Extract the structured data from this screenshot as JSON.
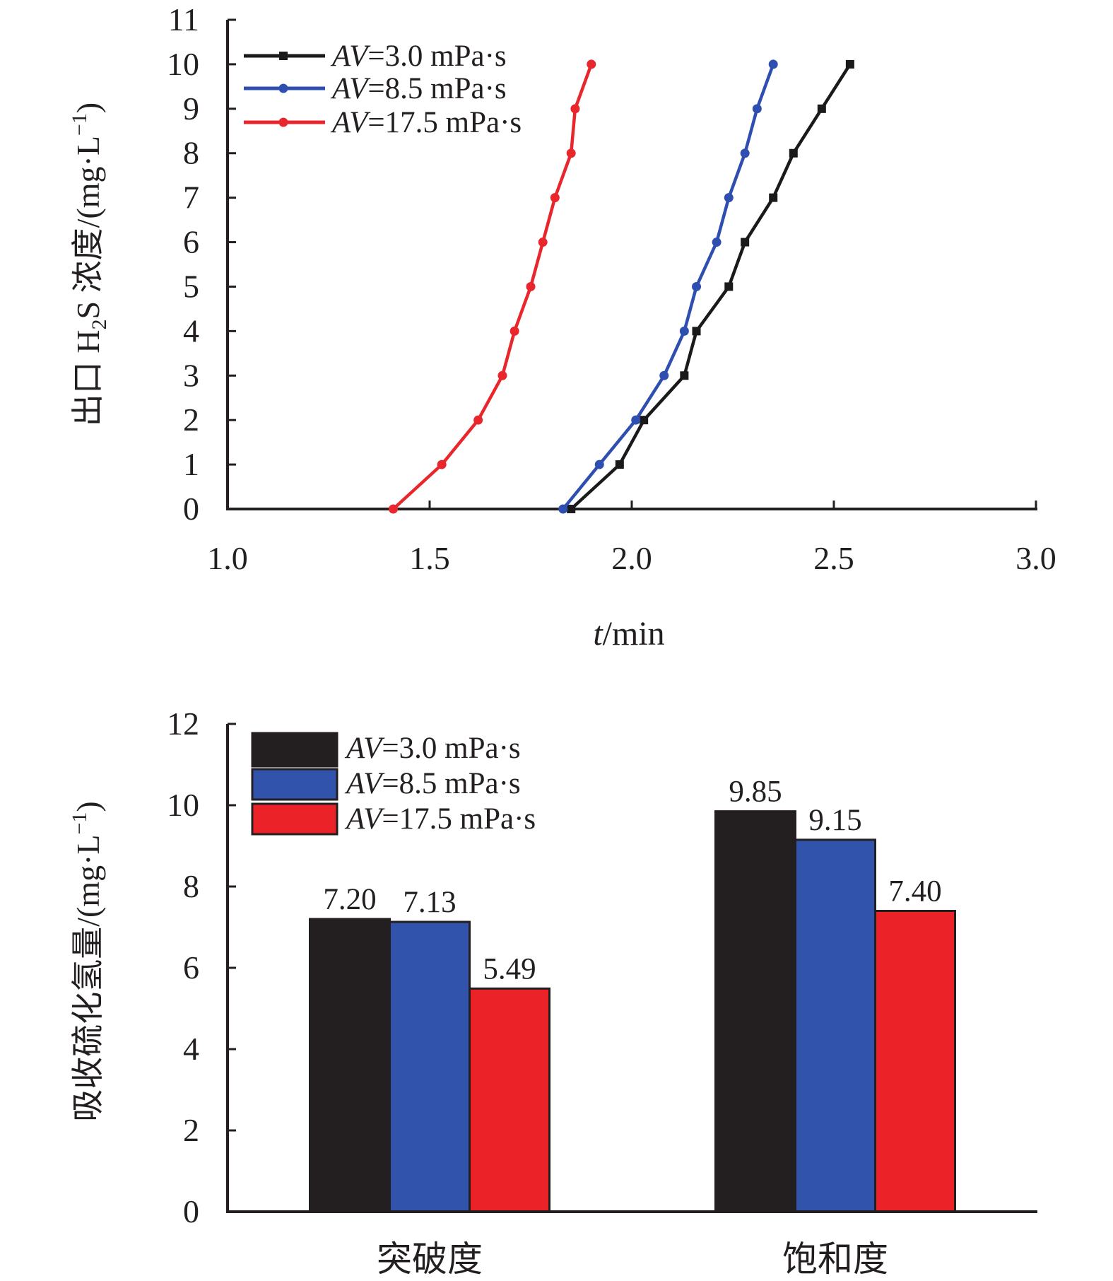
{
  "chart_data": [
    {
      "type": "line",
      "ylabel_parts": [
        "出口 H",
        "2",
        "S 浓度/(mg·L",
        "−1",
        ")"
      ],
      "xlabel_parts": [
        "t",
        "/min"
      ],
      "xlim": [
        1.0,
        3.0
      ],
      "ylim": [
        0,
        11
      ],
      "x_ticks": [
        "1.0",
        "1.5",
        "2.0",
        "2.5",
        "3.0"
      ],
      "y_ticks": [
        "0",
        "1",
        "2",
        "3",
        "4",
        "5",
        "6",
        "7",
        "8",
        "9",
        "10",
        "11"
      ],
      "grid": false,
      "legend_position": "top-left",
      "series": [
        {
          "name_italic": "AV",
          "name_rest": "=3.0 mPa·s",
          "color": "#1a1a1a",
          "marker": "square",
          "x": [
            1.85,
            1.97,
            2.03,
            2.13,
            2.16,
            2.24,
            2.28,
            2.35,
            2.4,
            2.47,
            2.54
          ],
          "y": [
            0,
            1,
            2,
            3,
            4,
            5,
            6,
            7,
            8,
            9,
            10
          ]
        },
        {
          "name_italic": "AV",
          "name_rest": "=8.5 mPa·s",
          "color": "#2e4fb0",
          "marker": "circle",
          "x": [
            1.83,
            1.92,
            2.01,
            2.08,
            2.13,
            2.16,
            2.21,
            2.24,
            2.28,
            2.31,
            2.35
          ],
          "y": [
            0,
            1,
            2,
            3,
            4,
            5,
            6,
            7,
            8,
            9,
            10
          ]
        },
        {
          "name_italic": "AV",
          "name_rest": "=17.5 mPa·s",
          "color": "#e8262b",
          "marker": "circle",
          "x": [
            1.41,
            1.53,
            1.62,
            1.68,
            1.71,
            1.75,
            1.78,
            1.81,
            1.85,
            1.86,
            1.9
          ],
          "y": [
            0,
            1,
            2,
            3,
            4,
            5,
            6,
            7,
            8,
            9,
            10
          ]
        }
      ]
    },
    {
      "type": "bar",
      "ylabel_parts": [
        "吸收硫化氢量/(mg·L",
        "−1",
        ")"
      ],
      "categories": [
        "突破度",
        "饱和度"
      ],
      "ylim": [
        0,
        12
      ],
      "y_ticks": [
        "0",
        "2",
        "4",
        "6",
        "8",
        "10",
        "12"
      ],
      "grid": false,
      "legend_position": "top-left",
      "series": [
        {
          "name_italic": "AV",
          "name_rest": "=3.0 mPa·s",
          "color": "#231f20",
          "values": [
            7.2,
            9.85
          ],
          "labels": [
            "7.20",
            "9.85"
          ]
        },
        {
          "name_italic": "AV",
          "name_rest": "=8.5 mPa·s",
          "color": "#3153ab",
          "values": [
            7.13,
            9.15
          ],
          "labels": [
            "7.13",
            "9.15"
          ]
        },
        {
          "name_italic": "AV",
          "name_rest": "=17.5 mPa·s",
          "color": "#ec2229",
          "values": [
            5.49,
            7.4
          ],
          "labels": [
            "5.49",
            "7.40"
          ]
        }
      ]
    }
  ]
}
